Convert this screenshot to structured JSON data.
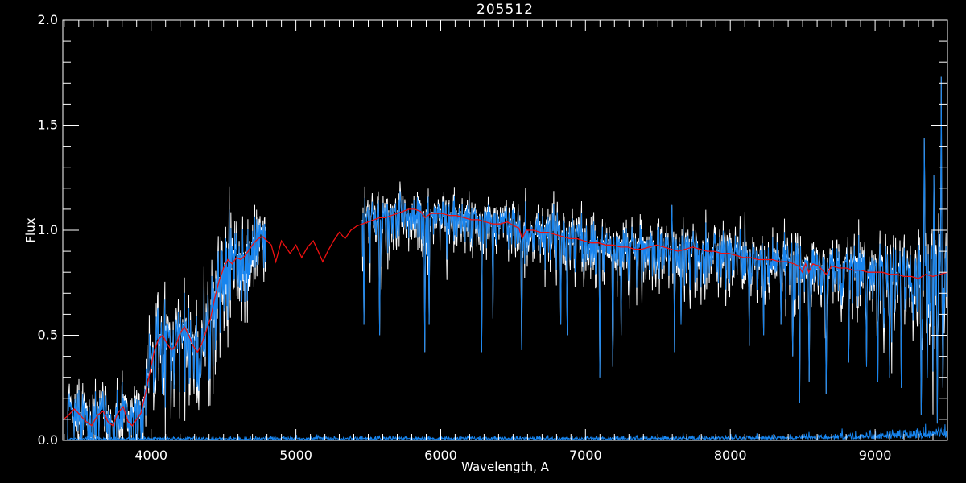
{
  "chart_data": {
    "type": "line",
    "title": "205512",
    "xlabel": "Wavelength, A",
    "ylabel": "Flux",
    "xlim": [
      3390,
      9500
    ],
    "ylim": [
      0.0,
      2.0
    ],
    "grid": false,
    "legend": null,
    "background": "#000000",
    "frame_color": "#ffffff",
    "x_major_ticks": [
      4000,
      5000,
      6000,
      7000,
      8000,
      9000
    ],
    "x_tick_labels": [
      "4000",
      "5000",
      "6000",
      "7000",
      "8000",
      "9000"
    ],
    "x_minor_tick_step": 100,
    "y_major_ticks": [
      0.0,
      0.5,
      1.0,
      1.5,
      2.0
    ],
    "y_tick_labels": [
      "0.0",
      "0.5",
      "1.0",
      "1.5",
      "2.0"
    ],
    "y_minor_tick_step": 0.1,
    "noise_seed": 205512,
    "sample_step_angstrom": 3,
    "series": [
      {
        "name": "noise-envelope",
        "description": "white noisy envelope drawn behind observed spectrum",
        "color": "#ffffff",
        "amp_scale": 1.45
      },
      {
        "name": "observed-spectrum",
        "description": "blue noisy observed spectrum, gap 4791-5458 A",
        "color": "#1784ee",
        "amp_scale": 1.0
      },
      {
        "name": "template-model",
        "description": "red smooth template spanning full range incl. gap",
        "color": "#ee1111"
      },
      {
        "name": "error-spectrum",
        "description": "blue error array along flux=0, rising toward red end",
        "color": "#1784ee"
      }
    ],
    "segments": [
      [
        3423,
        4791
      ],
      [
        5458,
        9500
      ]
    ],
    "model_points": [
      [
        3395,
        0.1
      ],
      [
        3430,
        0.12
      ],
      [
        3470,
        0.15
      ],
      [
        3510,
        0.12
      ],
      [
        3550,
        0.09
      ],
      [
        3590,
        0.07
      ],
      [
        3630,
        0.12
      ],
      [
        3670,
        0.14
      ],
      [
        3700,
        0.09
      ],
      [
        3735,
        0.07
      ],
      [
        3770,
        0.13
      ],
      [
        3807,
        0.16
      ],
      [
        3840,
        0.09
      ],
      [
        3870,
        0.07
      ],
      [
        3900,
        0.1
      ],
      [
        3930,
        0.13
      ],
      [
        3960,
        0.22
      ],
      [
        3990,
        0.32
      ],
      [
        4020,
        0.42
      ],
      [
        4050,
        0.48
      ],
      [
        4080,
        0.5
      ],
      [
        4110,
        0.46
      ],
      [
        4140,
        0.43
      ],
      [
        4170,
        0.45
      ],
      [
        4200,
        0.51
      ],
      [
        4230,
        0.54
      ],
      [
        4260,
        0.5
      ],
      [
        4290,
        0.45
      ],
      [
        4320,
        0.42
      ],
      [
        4350,
        0.46
      ],
      [
        4380,
        0.52
      ],
      [
        4410,
        0.58
      ],
      [
        4440,
        0.68
      ],
      [
        4470,
        0.76
      ],
      [
        4500,
        0.82
      ],
      [
        4530,
        0.86
      ],
      [
        4560,
        0.84
      ],
      [
        4590,
        0.87
      ],
      [
        4620,
        0.86
      ],
      [
        4650,
        0.88
      ],
      [
        4680,
        0.91
      ],
      [
        4710,
        0.94
      ],
      [
        4740,
        0.96
      ],
      [
        4770,
        0.97
      ],
      [
        4800,
        0.95
      ],
      [
        4830,
        0.93
      ],
      [
        4861,
        0.85
      ],
      [
        4900,
        0.95
      ],
      [
        4930,
        0.92
      ],
      [
        4960,
        0.89
      ],
      [
        5000,
        0.93
      ],
      [
        5040,
        0.87
      ],
      [
        5080,
        0.92
      ],
      [
        5120,
        0.95
      ],
      [
        5160,
        0.89
      ],
      [
        5185,
        0.85
      ],
      [
        5220,
        0.9
      ],
      [
        5260,
        0.95
      ],
      [
        5300,
        0.99
      ],
      [
        5340,
        0.96
      ],
      [
        5380,
        1.0
      ],
      [
        5420,
        1.02
      ],
      [
        5458,
        1.03
      ],
      [
        5500,
        1.04
      ],
      [
        5540,
        1.05
      ],
      [
        5580,
        1.06
      ],
      [
        5620,
        1.06
      ],
      [
        5660,
        1.07
      ],
      [
        5700,
        1.08
      ],
      [
        5740,
        1.09
      ],
      [
        5780,
        1.1
      ],
      [
        5820,
        1.1
      ],
      [
        5860,
        1.09
      ],
      [
        5893,
        1.06
      ],
      [
        5930,
        1.08
      ],
      [
        5970,
        1.08
      ],
      [
        6010,
        1.08
      ],
      [
        6060,
        1.07
      ],
      [
        6110,
        1.07
      ],
      [
        6160,
        1.06
      ],
      [
        6210,
        1.05
      ],
      [
        6260,
        1.05
      ],
      [
        6310,
        1.04
      ],
      [
        6360,
        1.03
      ],
      [
        6410,
        1.03
      ],
      [
        6460,
        1.04
      ],
      [
        6510,
        1.02
      ],
      [
        6540,
        1.01
      ],
      [
        6563,
        0.96
      ],
      [
        6590,
        1.0
      ],
      [
        6640,
        1.0
      ],
      [
        6690,
        0.99
      ],
      [
        6740,
        0.99
      ],
      [
        6790,
        0.98
      ],
      [
        6840,
        0.97
      ],
      [
        6890,
        0.96
      ],
      [
        6940,
        0.96
      ],
      [
        6990,
        0.95
      ],
      [
        7040,
        0.94
      ],
      [
        7090,
        0.94
      ],
      [
        7140,
        0.93
      ],
      [
        7190,
        0.93
      ],
      [
        7240,
        0.92
      ],
      [
        7290,
        0.92
      ],
      [
        7340,
        0.91
      ],
      [
        7390,
        0.91
      ],
      [
        7440,
        0.92
      ],
      [
        7490,
        0.93
      ],
      [
        7540,
        0.92
      ],
      [
        7590,
        0.91
      ],
      [
        7640,
        0.9
      ],
      [
        7690,
        0.91
      ],
      [
        7740,
        0.92
      ],
      [
        7790,
        0.91
      ],
      [
        7840,
        0.9
      ],
      [
        7890,
        0.9
      ],
      [
        7940,
        0.89
      ],
      [
        7990,
        0.89
      ],
      [
        8040,
        0.88
      ],
      [
        8090,
        0.87
      ],
      [
        8140,
        0.87
      ],
      [
        8190,
        0.86
      ],
      [
        8240,
        0.86
      ],
      [
        8290,
        0.86
      ],
      [
        8340,
        0.85
      ],
      [
        8390,
        0.85
      ],
      [
        8440,
        0.84
      ],
      [
        8470,
        0.83
      ],
      [
        8498,
        0.8
      ],
      [
        8520,
        0.84
      ],
      [
        8542,
        0.8
      ],
      [
        8570,
        0.84
      ],
      [
        8610,
        0.83
      ],
      [
        8662,
        0.79
      ],
      [
        8700,
        0.83
      ],
      [
        8750,
        0.82
      ],
      [
        8800,
        0.82
      ],
      [
        8850,
        0.81
      ],
      [
        8900,
        0.81
      ],
      [
        8950,
        0.8
      ],
      [
        9000,
        0.8
      ],
      [
        9050,
        0.8
      ],
      [
        9100,
        0.79
      ],
      [
        9150,
        0.79
      ],
      [
        9200,
        0.78
      ],
      [
        9250,
        0.78
      ],
      [
        9300,
        0.77
      ],
      [
        9350,
        0.79
      ],
      [
        9400,
        0.78
      ],
      [
        9450,
        0.79
      ],
      [
        9500,
        0.8
      ]
    ],
    "noise_amp_points": [
      [
        3423,
        0.055
      ],
      [
        3700,
        0.065
      ],
      [
        3900,
        0.07
      ],
      [
        4100,
        0.09
      ],
      [
        4400,
        0.1
      ],
      [
        4600,
        0.09
      ],
      [
        4791,
        0.07
      ],
      [
        5458,
        0.06
      ],
      [
        5700,
        0.05
      ],
      [
        6000,
        0.045
      ],
      [
        6500,
        0.045
      ],
      [
        7000,
        0.05
      ],
      [
        7400,
        0.055
      ],
      [
        7800,
        0.05
      ],
      [
        8200,
        0.05
      ],
      [
        8600,
        0.055
      ],
      [
        8900,
        0.065
      ],
      [
        9100,
        0.08
      ],
      [
        9300,
        0.1
      ],
      [
        9500,
        0.14
      ]
    ],
    "spikes": [
      [
        4077,
        0.22
      ],
      [
        4340,
        0.3
      ],
      [
        5470,
        0.55
      ],
      [
        5577,
        0.5
      ],
      [
        5889,
        0.42
      ],
      [
        5920,
        0.55
      ],
      [
        6284,
        0.42
      ],
      [
        6360,
        0.58
      ],
      [
        6560,
        0.43
      ],
      [
        6830,
        0.55
      ],
      [
        6875,
        0.5
      ],
      [
        7100,
        0.3
      ],
      [
        7190,
        0.35
      ],
      [
        7245,
        0.5
      ],
      [
        7598,
        1.12
      ],
      [
        7615,
        0.42
      ],
      [
        7660,
        0.55
      ],
      [
        8130,
        0.45
      ],
      [
        8230,
        0.5
      ],
      [
        8350,
        0.55
      ],
      [
        8430,
        0.4
      ],
      [
        8480,
        0.18
      ],
      [
        8545,
        0.28
      ],
      [
        8662,
        0.22
      ],
      [
        8817,
        0.37
      ],
      [
        8940,
        0.35
      ],
      [
        9020,
        0.28
      ],
      [
        9100,
        0.3
      ],
      [
        9180,
        0.25
      ],
      [
        9320,
        0.12
      ],
      [
        9339,
        1.44
      ],
      [
        9360,
        0.3
      ],
      [
        9406,
        1.26
      ],
      [
        9430,
        0.08
      ],
      [
        9456,
        1.73
      ],
      [
        9470,
        0.25
      ]
    ],
    "error_level_points": [
      [
        3423,
        0.007
      ],
      [
        5000,
        0.008
      ],
      [
        7000,
        0.009
      ],
      [
        8000,
        0.011
      ],
      [
        8600,
        0.014
      ],
      [
        8900,
        0.018
      ],
      [
        9100,
        0.022
      ],
      [
        9300,
        0.028
      ],
      [
        9500,
        0.034
      ]
    ]
  }
}
